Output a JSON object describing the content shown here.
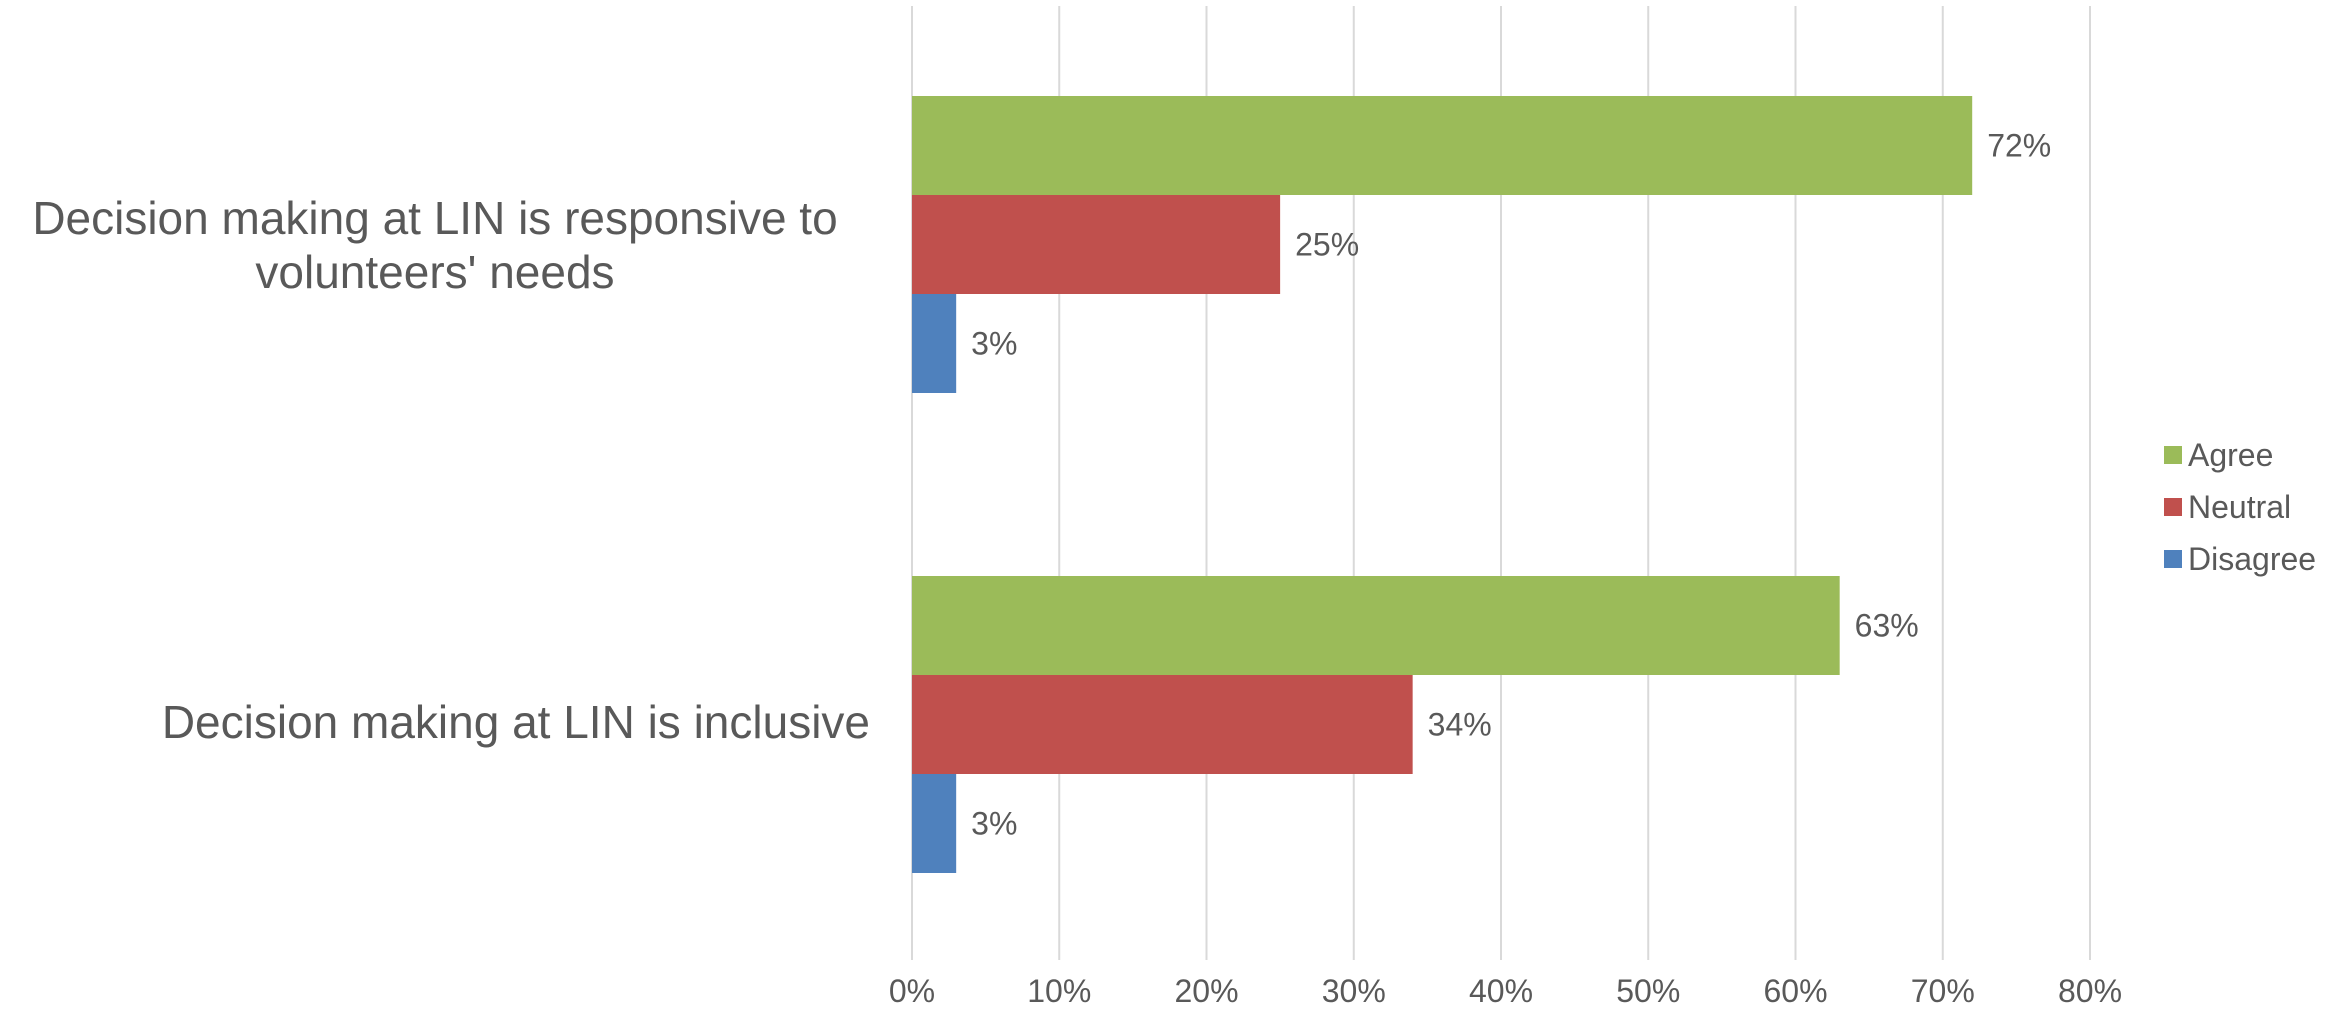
{
  "chart_data": {
    "type": "bar",
    "orientation": "horizontal",
    "categories": [
      "Decision making at LIN is responsive to volunteers' needs",
      "Decision making at LIN is inclusive"
    ],
    "category_label_lines": [
      [
        "Decision making at LIN is responsive to",
        "volunteers' needs"
      ],
      [
        "Decision making at LIN is inclusive"
      ]
    ],
    "series": [
      {
        "name": "Agree",
        "color": "#9BBB59",
        "values": [
          72,
          63
        ],
        "labels": [
          "72%",
          "63%"
        ]
      },
      {
        "name": "Neutral",
        "color": "#C0504D",
        "values": [
          25,
          34
        ],
        "labels": [
          "25%",
          "34%"
        ]
      },
      {
        "name": "Disagree",
        "color": "#4F81BD",
        "values": [
          3,
          3
        ],
        "labels": [
          "3%",
          "3%"
        ]
      }
    ],
    "x_ticks": [
      "0%",
      "10%",
      "20%",
      "30%",
      "40%",
      "50%",
      "60%",
      "70%",
      "80%"
    ],
    "xlim": [
      0,
      80
    ],
    "x_unit": "percent",
    "title": "",
    "xlabel": "",
    "ylabel": "",
    "grid": "vertical",
    "legend_position": "right"
  }
}
